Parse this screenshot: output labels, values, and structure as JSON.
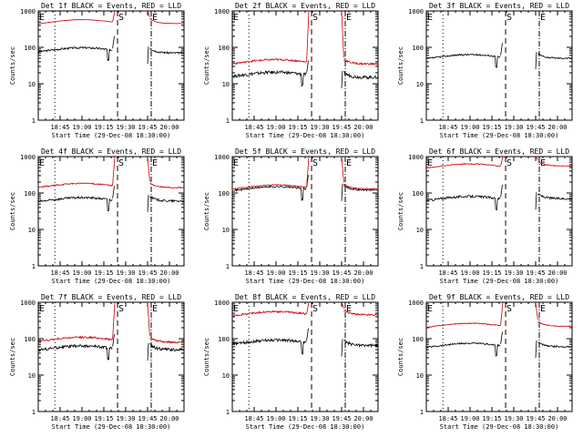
{
  "chart_data": [
    {
      "type": "line",
      "title": "Det 1f BLACK = Events, RED = LLD",
      "xlabel": "Start Time (29-Dec-08 18:30:00)",
      "ylabel": "Counts/sec",
      "yscale": "log",
      "ylim": [
        1,
        1000
      ],
      "yticks": [
        "1",
        "10",
        "100",
        "1000"
      ],
      "xticks": [
        "18:45",
        "19:00",
        "19:15",
        "19:30",
        "19:45",
        "20:00"
      ],
      "markers": {
        "E1": "E",
        "S": "S",
        "E2": "E"
      },
      "series": [
        {
          "color": "#000000",
          "base_before": 85,
          "base_after": 70,
          "noise": 0.06
        },
        {
          "color": "#cc0000",
          "base_before": 500,
          "base_after": 450,
          "noise": 0.01
        }
      ]
    },
    {
      "type": "line",
      "title": "Det 2f BLACK = Events, RED = LLD",
      "xlabel": "Start Time (29-Dec-08 18:30:00)",
      "ylabel": "Counts/sec",
      "yscale": "log",
      "ylim": [
        1,
        1000
      ],
      "yticks": [
        "1",
        "10",
        "100",
        "1000"
      ],
      "xticks": [
        "18:45",
        "19:00",
        "19:15",
        "19:30",
        "19:45",
        "20:00"
      ],
      "markers": {
        "E1": "E",
        "S": "S",
        "E2": "E"
      },
      "series": [
        {
          "color": "#000000",
          "base_before": 18,
          "base_after": 15,
          "noise": 0.1
        },
        {
          "color": "#cc0000",
          "base_before": 40,
          "base_after": 35,
          "noise": 0.06
        }
      ]
    },
    {
      "type": "line",
      "title": "Det 3f BLACK = Events, RED = LLD",
      "xlabel": "Start Time (29-Dec-08 18:30:00)",
      "ylabel": "Counts/sec",
      "yscale": "log",
      "ylim": [
        1,
        1000
      ],
      "yticks": [
        "1",
        "10",
        "100",
        "1000"
      ],
      "xticks": [
        "18:45",
        "19:00",
        "19:15",
        "19:30",
        "19:45",
        "20:00"
      ],
      "markers": {
        "E1": "E",
        "S": "S",
        "E2": "E"
      },
      "series": [
        {
          "color": "#000000",
          "base_before": 55,
          "base_after": 50,
          "noise": 0.05
        }
      ]
    },
    {
      "type": "line",
      "title": "Det 4f BLACK = Events, RED = LLD",
      "xlabel": "Start Time (29-Dec-08 18:30:00)",
      "ylabel": "Counts/sec",
      "yscale": "log",
      "ylim": [
        1,
        1000
      ],
      "yticks": [
        "1",
        "10",
        "100",
        "1000"
      ],
      "xticks": [
        "18:45",
        "19:00",
        "19:15",
        "19:30",
        "19:45",
        "20:00"
      ],
      "markers": {
        "E1": "E",
        "S": "S",
        "E2": "E"
      },
      "series": [
        {
          "color": "#000000",
          "base_before": 65,
          "base_after": 60,
          "noise": 0.07
        },
        {
          "color": "#cc0000",
          "base_before": 160,
          "base_after": 140,
          "noise": 0.04
        }
      ]
    },
    {
      "type": "line",
      "title": "Det 5f BLACK = Events, RED = LLD",
      "xlabel": "Start Time (29-Dec-08 18:30:00)",
      "ylabel": "Counts/sec",
      "yscale": "log",
      "ylim": [
        1,
        1000
      ],
      "yticks": [
        "1",
        "10",
        "100",
        "1000"
      ],
      "xticks": [
        "18:45",
        "19:00",
        "19:15",
        "19:30",
        "19:45",
        "20:00"
      ],
      "markers": {
        "E1": "E",
        "S": "S",
        "E2": "E"
      },
      "series": [
        {
          "color": "#000000",
          "base_before": 130,
          "base_after": 120,
          "noise": 0.05
        },
        {
          "color": "#cc0000",
          "base_before": 145,
          "base_after": 130,
          "noise": 0.03
        }
      ]
    },
    {
      "type": "line",
      "title": "Det 6f BLACK = Events, RED = LLD",
      "xlabel": "Start Time (29-Dec-08 18:30:00)",
      "ylabel": "Counts/sec",
      "yscale": "log",
      "ylim": [
        1,
        1000
      ],
      "yticks": [
        "1",
        "10",
        "100",
        "1000"
      ],
      "xticks": [
        "18:45",
        "19:00",
        "19:15",
        "19:30",
        "19:45",
        "20:00"
      ],
      "markers": {
        "E1": "E",
        "S": "S",
        "E2": "E"
      },
      "series": [
        {
          "color": "#000000",
          "base_before": 70,
          "base_after": 70,
          "noise": 0.07
        },
        {
          "color": "#cc0000",
          "base_before": 550,
          "base_after": 550,
          "noise": 0.03
        }
      ]
    },
    {
      "type": "line",
      "title": "Det 7f BLACK = Events, RED = LLD",
      "xlabel": "Start Time (29-Dec-08 18:30:00)",
      "ylabel": "Counts/sec",
      "yscale": "log",
      "ylim": [
        1,
        1000
      ],
      "yticks": [
        "1",
        "10",
        "100",
        "1000"
      ],
      "xticks": [
        "18:45",
        "19:00",
        "19:15",
        "19:30",
        "19:45",
        "20:00"
      ],
      "markers": {
        "E1": "E",
        "S": "S",
        "E2": "E"
      },
      "series": [
        {
          "color": "#000000",
          "base_before": 55,
          "base_after": 50,
          "noise": 0.09
        },
        {
          "color": "#cc0000",
          "base_before": 95,
          "base_after": 80,
          "noise": 0.06
        }
      ]
    },
    {
      "type": "line",
      "title": "Det 8f BLACK = Events, RED = LLD",
      "xlabel": "Start Time (29-Dec-08 18:30:00)",
      "ylabel": "Counts/sec",
      "yscale": "log",
      "ylim": [
        1,
        1000
      ],
      "yticks": [
        "1",
        "10",
        "100",
        "1000"
      ],
      "xticks": [
        "18:45",
        "19:00",
        "19:15",
        "19:30",
        "19:45",
        "20:00"
      ],
      "markers": {
        "E1": "E",
        "S": "S",
        "E2": "E"
      },
      "series": [
        {
          "color": "#000000",
          "base_before": 80,
          "base_after": 65,
          "noise": 0.09
        },
        {
          "color": "#cc0000",
          "base_before": 480,
          "base_after": 450,
          "noise": 0.06
        }
      ]
    },
    {
      "type": "line",
      "title": "Det 9f BLACK = Events, RED = LLD",
      "xlabel": "Start Time (29-Dec-08 18:30:00)",
      "ylabel": "Counts/sec",
      "yscale": "log",
      "ylim": [
        1,
        1000
      ],
      "yticks": [
        "1",
        "10",
        "100",
        "1000"
      ],
      "xticks": [
        "18:45",
        "19:00",
        "19:15",
        "19:30",
        "19:45",
        "20:00"
      ],
      "markers": {
        "E1": "E",
        "S": "S",
        "E2": "E"
      },
      "series": [
        {
          "color": "#000000",
          "base_before": 65,
          "base_after": 60,
          "noise": 0.05
        },
        {
          "color": "#cc0000",
          "base_before": 230,
          "base_after": 220,
          "noise": 0.03
        }
      ]
    }
  ]
}
